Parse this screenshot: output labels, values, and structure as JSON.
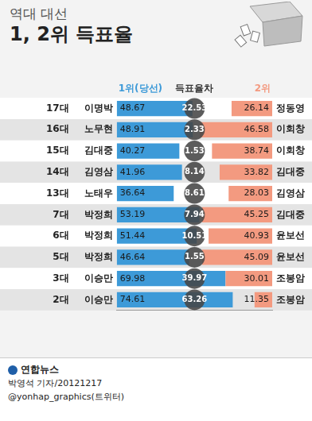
{
  "chart_data": {
    "type": "bar",
    "orientation": "horizontal",
    "title": [
      "역대 대선",
      "1, 2위 득표율"
    ],
    "categories": [
      "17대",
      "16대",
      "15대",
      "14대",
      "13대",
      "7대",
      "6대",
      "5대",
      "3대",
      "2대"
    ],
    "series": [
      {
        "name": "1위(당선)",
        "color": "#3d9ad8",
        "values": [
          48.67,
          48.91,
          40.27,
          41.96,
          36.64,
          53.19,
          51.44,
          46.64,
          69.98,
          74.61
        ],
        "candidates": [
          "이명박",
          "노무현",
          "김대중",
          "김영삼",
          "노태우",
          "박정희",
          "박정희",
          "박정희",
          "이승만",
          "이승만"
        ]
      },
      {
        "name": "2위",
        "color": "#f39a80",
        "values": [
          26.14,
          46.58,
          38.74,
          33.82,
          28.03,
          45.25,
          40.93,
          45.09,
          30.01,
          11.35
        ],
        "candidates": [
          "정동영",
          "이회창",
          "이회창",
          "김대중",
          "김영삼",
          "김대중",
          "윤보선",
          "윤보선",
          "조봉암",
          "조봉암"
        ]
      }
    ],
    "differences": {
      "name": "득표율차",
      "values": [
        22.53,
        2.33,
        1.53,
        8.14,
        8.61,
        7.94,
        10.51,
        1.55,
        39.97,
        63.26
      ]
    },
    "xlim": [
      0,
      100
    ],
    "data_labels": true,
    "tick_labels": "y",
    "grid": false
  },
  "footer": {
    "source": "연합뉴스",
    "credit": "박영석 기자/20121217",
    "twitter": "@yonhap_graphics(트위터)"
  }
}
